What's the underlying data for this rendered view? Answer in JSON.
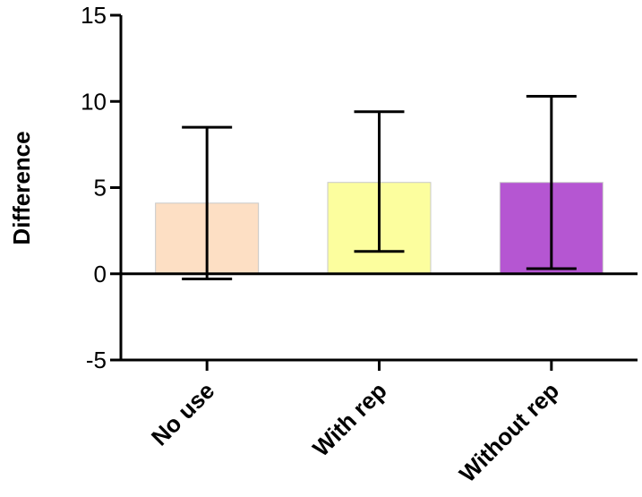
{
  "chart_data": {
    "type": "bar",
    "title": "",
    "xlabel": "",
    "ylabel": "Difference",
    "ylim": [
      -5,
      15
    ],
    "yticks": [
      -5,
      0,
      5,
      10,
      15
    ],
    "grid": false,
    "categories": [
      "No use",
      "With rep",
      "Without rep"
    ],
    "values": [
      4.1,
      5.3,
      5.3
    ],
    "error_bars": [
      {
        "low": -0.3,
        "high": 8.5
      },
      {
        "low": 1.3,
        "high": 9.4
      },
      {
        "low": 0.3,
        "high": 10.3
      }
    ],
    "colors": [
      "#FDDFC4",
      "#FCFE9E",
      "#B556D2"
    ]
  }
}
